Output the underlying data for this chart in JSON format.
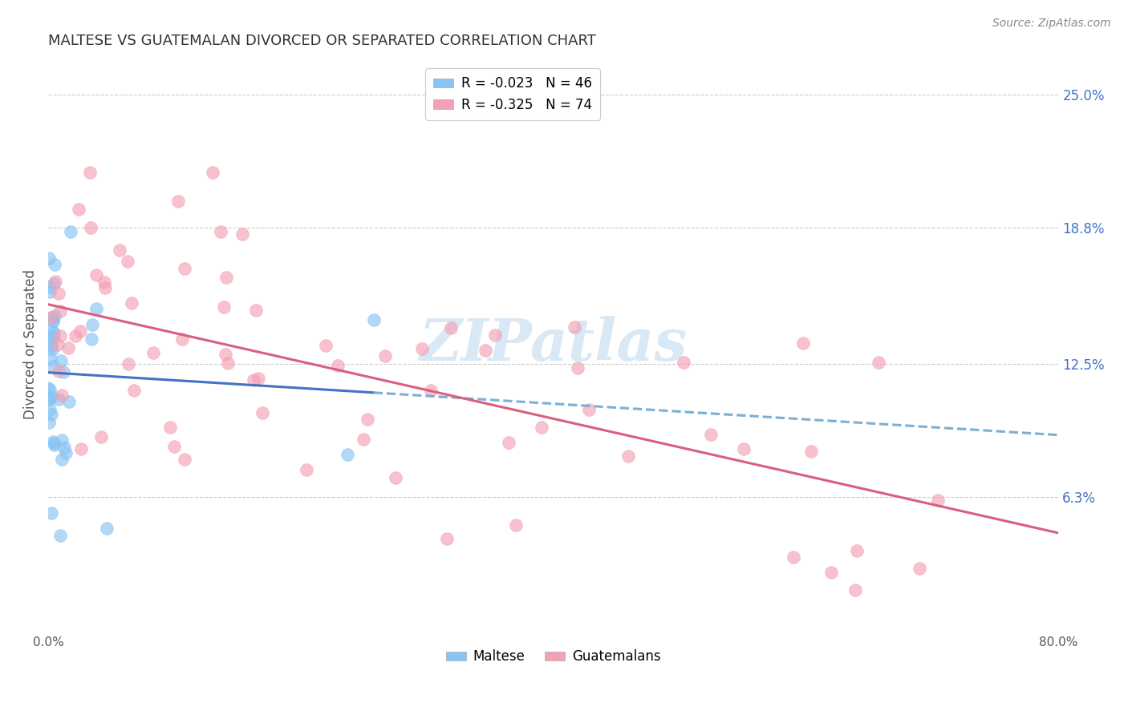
{
  "title": "MALTESE VS GUATEMALAN DIVORCED OR SEPARATED CORRELATION CHART",
  "source": "Source: ZipAtlas.com",
  "ylabel": "Divorced or Separated",
  "xlim": [
    0.0,
    0.8
  ],
  "ylim": [
    0.0,
    0.268
  ],
  "ytick_values": [
    0.063,
    0.125,
    0.188,
    0.25
  ],
  "ytick_labels": [
    "6.3%",
    "12.5%",
    "18.8%",
    "25.0%"
  ],
  "xtick_values": [
    0.0,
    0.1,
    0.2,
    0.3,
    0.4,
    0.5,
    0.6,
    0.7,
    0.8
  ],
  "xtick_labels": [
    "0.0%",
    "",
    "",
    "",
    "",
    "",
    "",
    "",
    "80.0%"
  ],
  "maltese_color": "#89c4f4",
  "guatemalan_color": "#f4a0b5",
  "maltese_R": -0.023,
  "maltese_N": 46,
  "guatemalan_R": -0.325,
  "guatemalan_N": 74,
  "background_color": "#ffffff",
  "grid_color": "#cccccc",
  "watermark_text": "ZIPatlas",
  "watermark_color": "#c8dff0",
  "legend_maltese_label": "Maltese",
  "legend_guatemalan_label": "Guatemalans",
  "maltese_trend_color": "#4472c4",
  "maltese_trend_dashed_color": "#7bafd4",
  "guatemalan_trend_color": "#d95f7f",
  "trend_linewidth": 2.2,
  "title_fontsize": 13,
  "source_fontsize": 10,
  "ytick_fontsize": 12,
  "xtick_fontsize": 11,
  "legend_fontsize": 12
}
